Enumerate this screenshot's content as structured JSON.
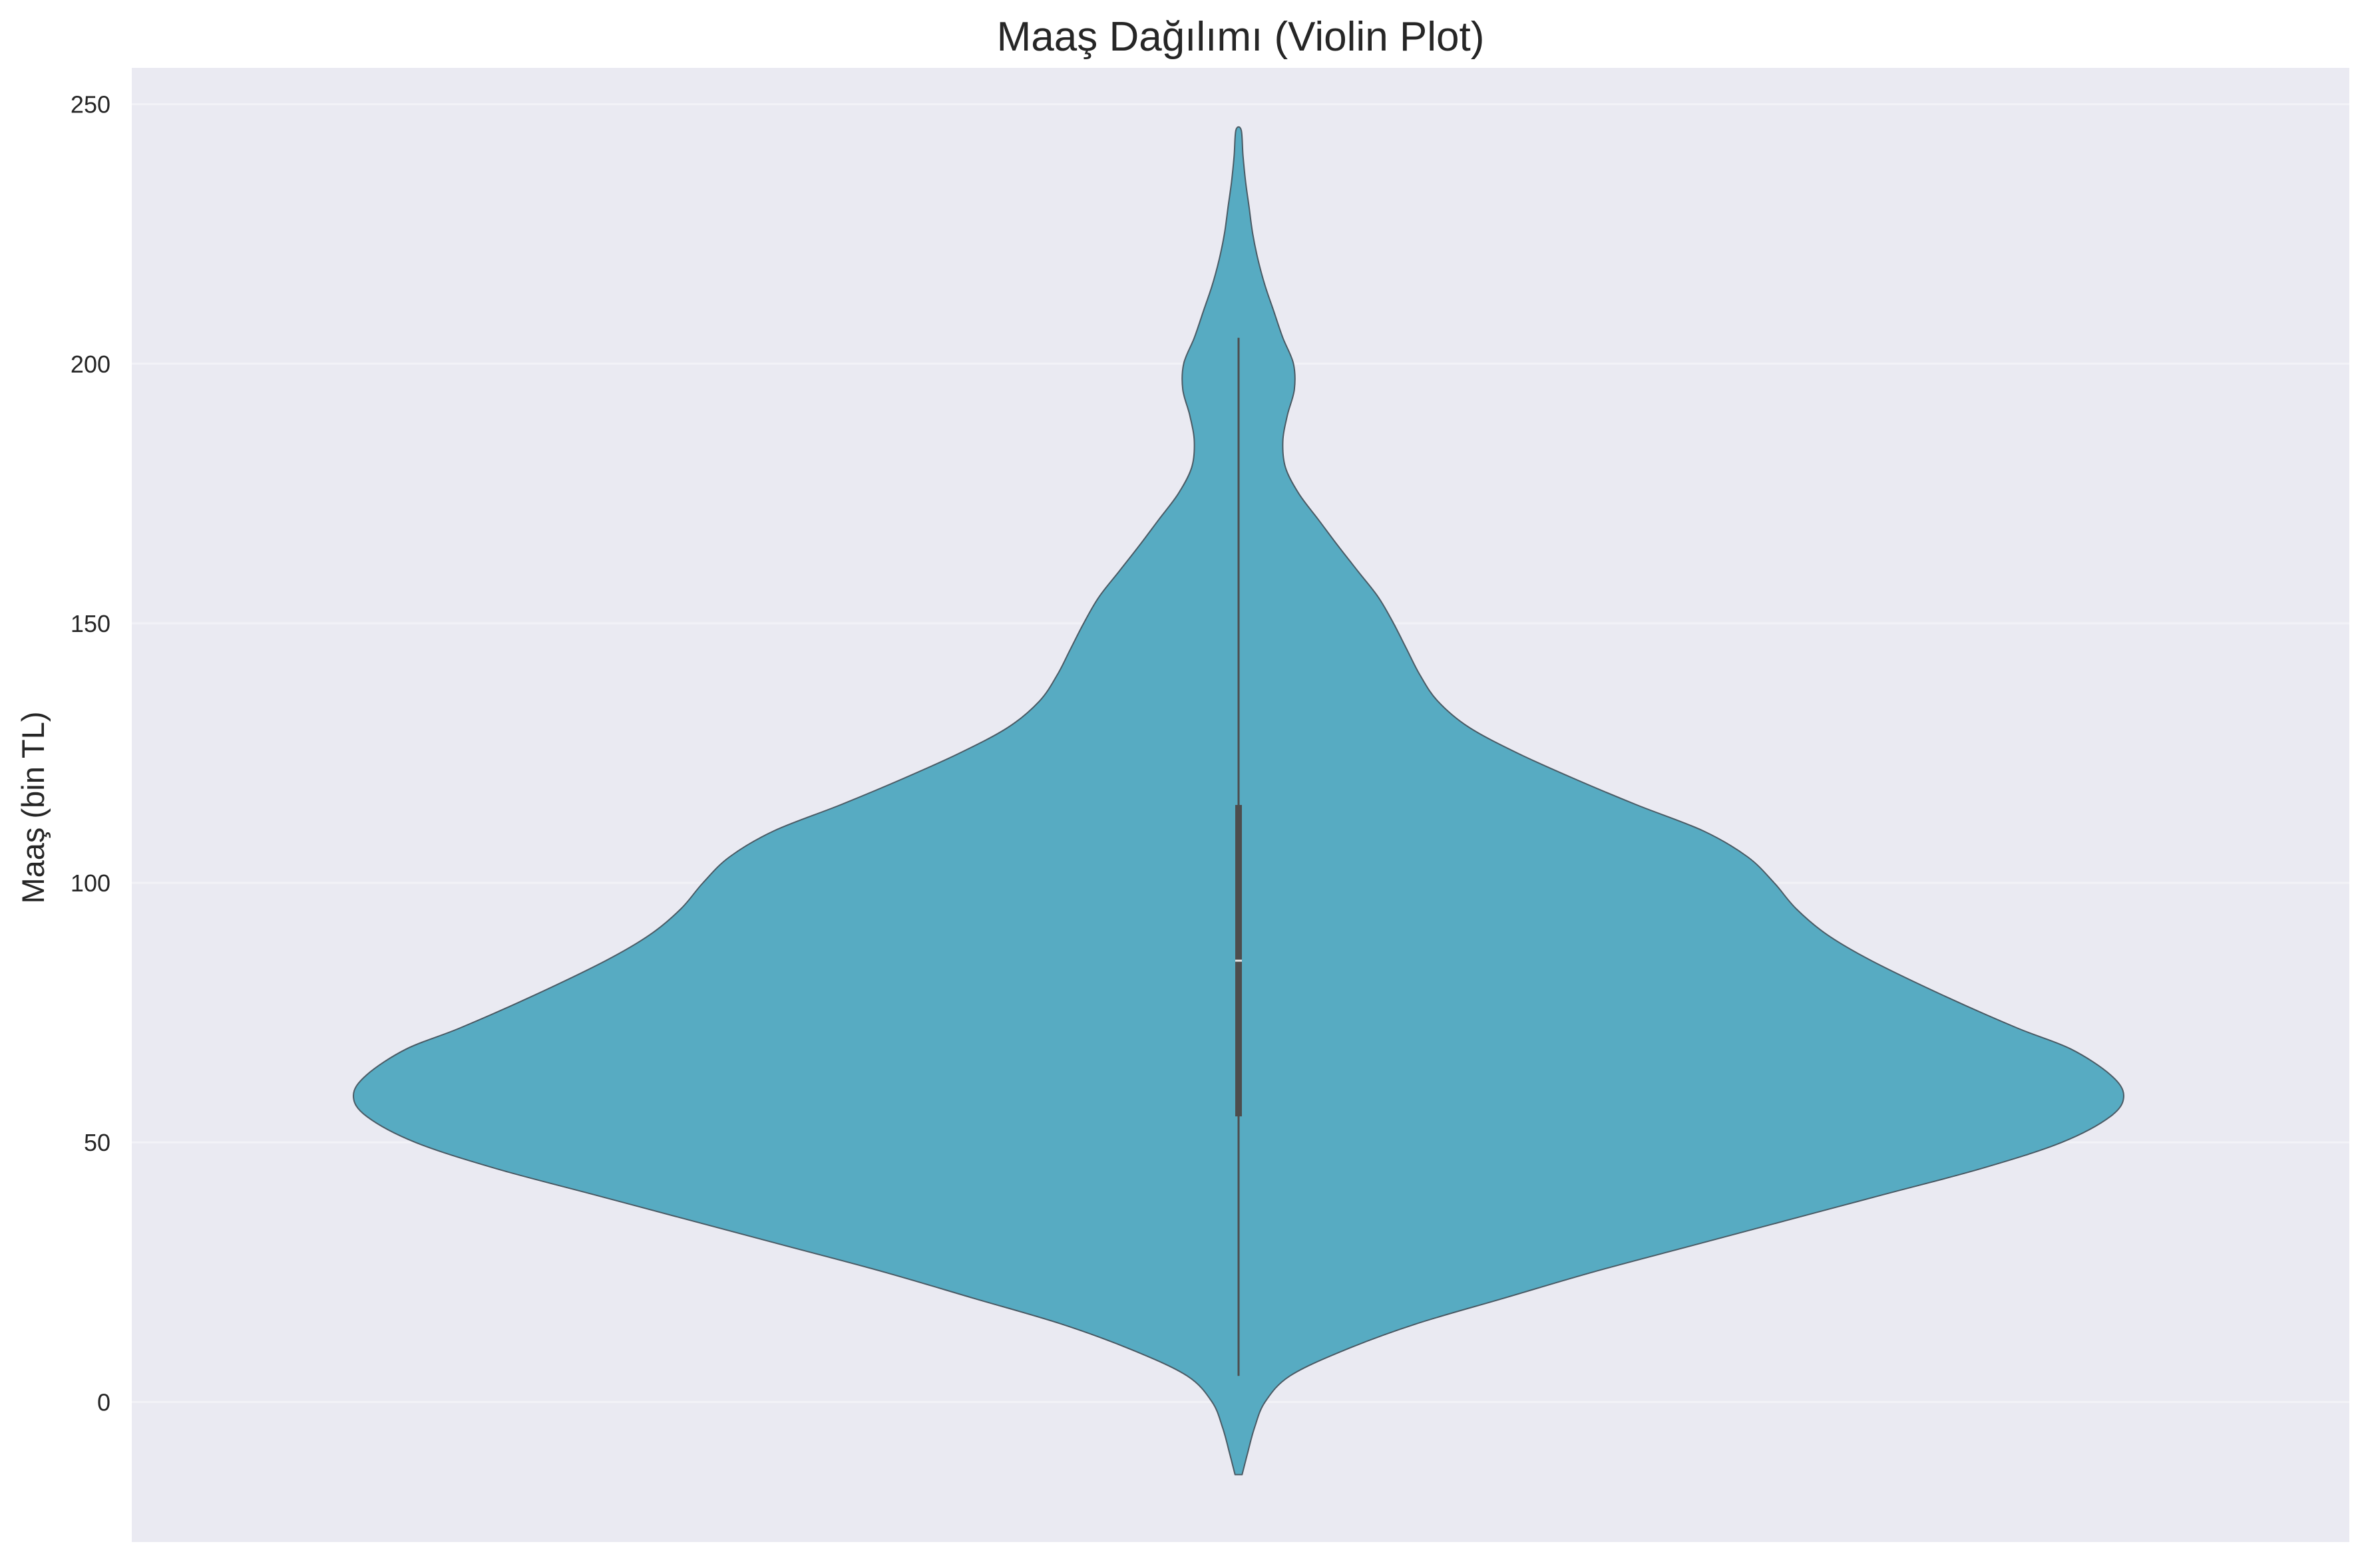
{
  "chart_data": {
    "type": "violin",
    "title": "Maaş Dağılımı (Violin Plot)",
    "xlabel": "",
    "ylabel": "Maaş (bin TL)",
    "ylim": [
      -27,
      257
    ],
    "yticks": [
      0,
      50,
      100,
      150,
      200,
      250
    ],
    "grid": true,
    "legend": "none",
    "colors": {
      "background": "#eaeaf2",
      "grid": "#f2f2f7",
      "violin_fill": "#57abc2",
      "violin_edge": "#4a5a64",
      "box": "#4d4d4d"
    },
    "violin": {
      "kde_min": -14,
      "kde_max": 245,
      "data_min": 5,
      "q1": 55,
      "median": 85,
      "q3": 115,
      "data_max": 205,
      "density_profile": [
        [
          -14,
          0.004
        ],
        [
          -10,
          0.01
        ],
        [
          -5,
          0.018
        ],
        [
          0,
          0.03
        ],
        [
          5,
          0.058
        ],
        [
          10,
          0.12
        ],
        [
          15,
          0.2
        ],
        [
          20,
          0.3
        ],
        [
          25,
          0.4
        ],
        [
          30,
          0.51
        ],
        [
          35,
          0.62
        ],
        [
          40,
          0.73
        ],
        [
          45,
          0.84
        ],
        [
          50,
          0.93
        ],
        [
          55,
          0.985
        ],
        [
          59,
          1.0
        ],
        [
          63,
          0.985
        ],
        [
          68,
          0.94
        ],
        [
          72,
          0.88
        ],
        [
          78,
          0.8
        ],
        [
          85,
          0.715
        ],
        [
          90,
          0.665
        ],
        [
          95,
          0.63
        ],
        [
          100,
          0.605
        ],
        [
          105,
          0.575
        ],
        [
          110,
          0.525
        ],
        [
          115,
          0.45
        ],
        [
          120,
          0.38
        ],
        [
          125,
          0.315
        ],
        [
          130,
          0.26
        ],
        [
          135,
          0.225
        ],
        [
          140,
          0.205
        ],
        [
          145,
          0.19
        ],
        [
          150,
          0.175
        ],
        [
          155,
          0.158
        ],
        [
          160,
          0.135
        ],
        [
          165,
          0.112
        ],
        [
          170,
          0.09
        ],
        [
          175,
          0.068
        ],
        [
          180,
          0.053
        ],
        [
          185,
          0.05
        ],
        [
          190,
          0.055
        ],
        [
          195,
          0.063
        ],
        [
          200,
          0.062
        ],
        [
          205,
          0.05
        ],
        [
          210,
          0.04
        ],
        [
          215,
          0.03
        ],
        [
          220,
          0.022
        ],
        [
          225,
          0.016
        ],
        [
          230,
          0.012
        ],
        [
          235,
          0.008
        ],
        [
          240,
          0.005
        ],
        [
          245,
          0.003
        ]
      ]
    }
  }
}
